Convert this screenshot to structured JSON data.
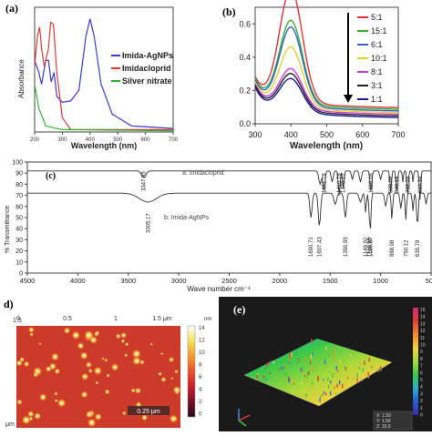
{
  "panels": {
    "a": "(a)",
    "b": "(b)",
    "c": "(c)",
    "d": "d)",
    "e": "(e)"
  },
  "chart_data": [
    {
      "panel": "a",
      "type": "line",
      "xlabel": "Wavelength (nm)",
      "ylabel": "Absorbance",
      "xlim": [
        200,
        700
      ],
      "x_ticks": [
        "200",
        "300",
        "400",
        "500",
        "600",
        "700"
      ],
      "legend_position": "right",
      "series": [
        {
          "name": "Imida-AgNPs",
          "color": "#3b3bd6",
          "points": [
            [
              200,
              0.6
            ],
            [
              215,
              0.5
            ],
            [
              225,
              0.4
            ],
            [
              240,
              0.6
            ],
            [
              250,
              0.6
            ],
            [
              260,
              0.42
            ],
            [
              270,
              0.5
            ],
            [
              280,
              0.3
            ],
            [
              300,
              0.25
            ],
            [
              330,
              0.26
            ],
            [
              360,
              0.35
            ],
            [
              385,
              0.8
            ],
            [
              400,
              0.95
            ],
            [
              415,
              0.8
            ],
            [
              440,
              0.4
            ],
            [
              480,
              0.15
            ],
            [
              550,
              0.05
            ],
            [
              700,
              0.03
            ]
          ]
        },
        {
          "name": "Imidacloprid",
          "color": "#e23a3a",
          "points": [
            [
              200,
              0.55
            ],
            [
              210,
              0.8
            ],
            [
              218,
              0.88
            ],
            [
              225,
              0.7
            ],
            [
              235,
              0.55
            ],
            [
              250,
              0.7
            ],
            [
              258,
              0.92
            ],
            [
              268,
              0.9
            ],
            [
              280,
              0.5
            ],
            [
              300,
              0.12
            ],
            [
              330,
              0.02
            ],
            [
              700,
              0.02
            ]
          ]
        },
        {
          "name": "Silver nitrate",
          "color": "#2fb52f",
          "points": [
            [
              200,
              0.4
            ],
            [
              215,
              0.2
            ],
            [
              240,
              0.05
            ],
            [
              300,
              0.02
            ],
            [
              700,
              0.01
            ]
          ]
        }
      ]
    },
    {
      "panel": "b",
      "type": "line",
      "xlabel": "Wavelength (nm)",
      "ylabel": "",
      "xlim": [
        300,
        700
      ],
      "ylim": [
        0,
        0.7
      ],
      "x_ticks": [
        "300",
        "400",
        "500",
        "600",
        "700"
      ],
      "y_ticks": [
        "0.0",
        "0.2",
        "0.4",
        "0.6"
      ],
      "legend_position": "right",
      "series": [
        {
          "name": "5:1",
          "color": "#e8303a",
          "peak": 0.68,
          "base": 0.09
        },
        {
          "name": "15:1",
          "color": "#2fb52f",
          "peak": 0.5,
          "base": 0.08
        },
        {
          "name": "6:1",
          "color": "#3a5fd6",
          "peak": 0.47,
          "base": 0.07
        },
        {
          "name": "10:1",
          "color": "#e3d12a",
          "peak": 0.36,
          "base": 0.06
        },
        {
          "name": "8:1",
          "color": "#d63ad6",
          "peak": 0.24,
          "base": 0.05
        },
        {
          "name": "3:1",
          "color": "#222222",
          "peak": 0.22,
          "base": 0.04
        },
        {
          "name": "1:1",
          "color": "#1a1aa0",
          "peak": 0.2,
          "base": 0.03
        }
      ]
    },
    {
      "panel": "c",
      "type": "line",
      "xlabel": "Wave number cm⁻¹",
      "ylabel": "% Transmittance",
      "xlim": [
        4500,
        500
      ],
      "ylim": [
        0,
        100
      ],
      "x_ticks": [
        "4500",
        "4000",
        "3500",
        "3000",
        "2500",
        "2000",
        "1500",
        "1000",
        "500"
      ],
      "y_ticks": [
        "0",
        "10",
        "20",
        "30",
        "40",
        "50",
        "60",
        "70",
        "80",
        "90",
        "100"
      ],
      "series": [
        {
          "name": "a: Imidacloprid",
          "color": "#333333",
          "baseline": 92
        },
        {
          "name": "b: Imida-AgNPs",
          "color": "#333333",
          "baseline": 72
        }
      ],
      "annotations_a": [
        "3347.85",
        "1561.78",
        "1410.78",
        "1370.12",
        "1096.08",
        "900.08",
        "840.15",
        "732.28",
        "610.34"
      ],
      "annotations_b": [
        "3305.17",
        "1690.71",
        "1607.43",
        "1350.55",
        "1148.92",
        "1110.56",
        "1099.67",
        "888.98",
        "750.12",
        "635.78"
      ]
    }
  ],
  "afm2d": {
    "x_ticks": [
      "0",
      "0.5",
      "1",
      "1.5 μm"
    ],
    "y_tick_top": "1.5",
    "y_tick_bottom": "μm",
    "scale_unit": "nm",
    "scale_ticks": [
      "14",
      "12",
      "10",
      "8",
      "6",
      "4",
      "2",
      "0"
    ],
    "scalebar_label": "0.25 μm",
    "colors": [
      "#ffffff",
      "#f4e15a",
      "#f29a2e",
      "#e8522a",
      "#c8202a",
      "#7a0e2a",
      "#2a0a20"
    ]
  },
  "afm3d": {
    "scale_ticks": [
      "15",
      "14",
      "13",
      "12",
      "11",
      "10",
      "9",
      "8",
      "7",
      "6",
      "5",
      "4",
      "3",
      "2",
      "1",
      "0"
    ],
    "readout": [
      "X: 1.50",
      "Y: 1.50",
      "Z: 15.0"
    ],
    "colors": [
      "#d02a7a",
      "#e63a3a",
      "#f08a2a",
      "#f4d03a",
      "#a8d83a",
      "#3ac84a",
      "#2ab0c8",
      "#2a5ad8",
      "#3a2ab0"
    ]
  }
}
